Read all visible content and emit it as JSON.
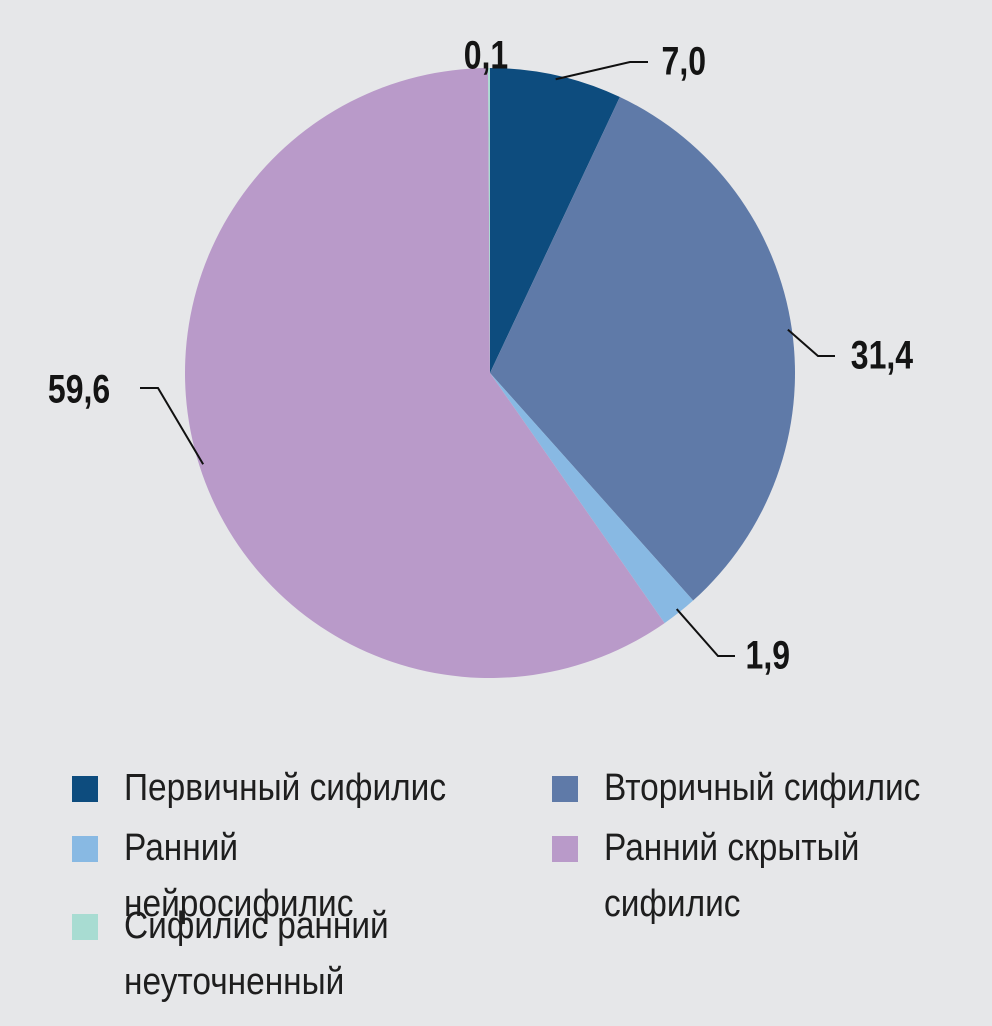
{
  "chart_data": {
    "type": "pie",
    "unit": "%",
    "series": [
      {
        "name": "Первичный сифилис",
        "value": 7.0,
        "label": "7,0",
        "color": "#0d4c7e"
      },
      {
        "name": "Вторичный сифилис",
        "value": 31.4,
        "label": "31,4",
        "color": "#5f7aa8"
      },
      {
        "name": "Ранний нейросифилис",
        "value": 1.9,
        "label": "1,9",
        "color": "#88b9e3"
      },
      {
        "name": "Ранний скрытый сифилис",
        "value": 59.6,
        "label": "59,6",
        "color": "#b99ac9"
      },
      {
        "name": "Сифилис ранний неуточненный",
        "value": 0.1,
        "label": "0,1",
        "color": "#a8dcd2"
      }
    ],
    "start_angle_deg": 0,
    "direction": "clockwise"
  },
  "legend": {
    "items": [
      {
        "text": "Первичный сифилис",
        "color": "#0d4c7e"
      },
      {
        "text": "Вторичный сифилис",
        "color": "#5f7aa8"
      },
      {
        "text": "Ранний нейросифилис",
        "color": "#88b9e3"
      },
      {
        "text": "Ранний скрытый\nсифилис",
        "color": "#b99ac9"
      },
      {
        "text": "Сифилис ранний\nнеуточненный",
        "color": "#a8dcd2"
      }
    ]
  }
}
